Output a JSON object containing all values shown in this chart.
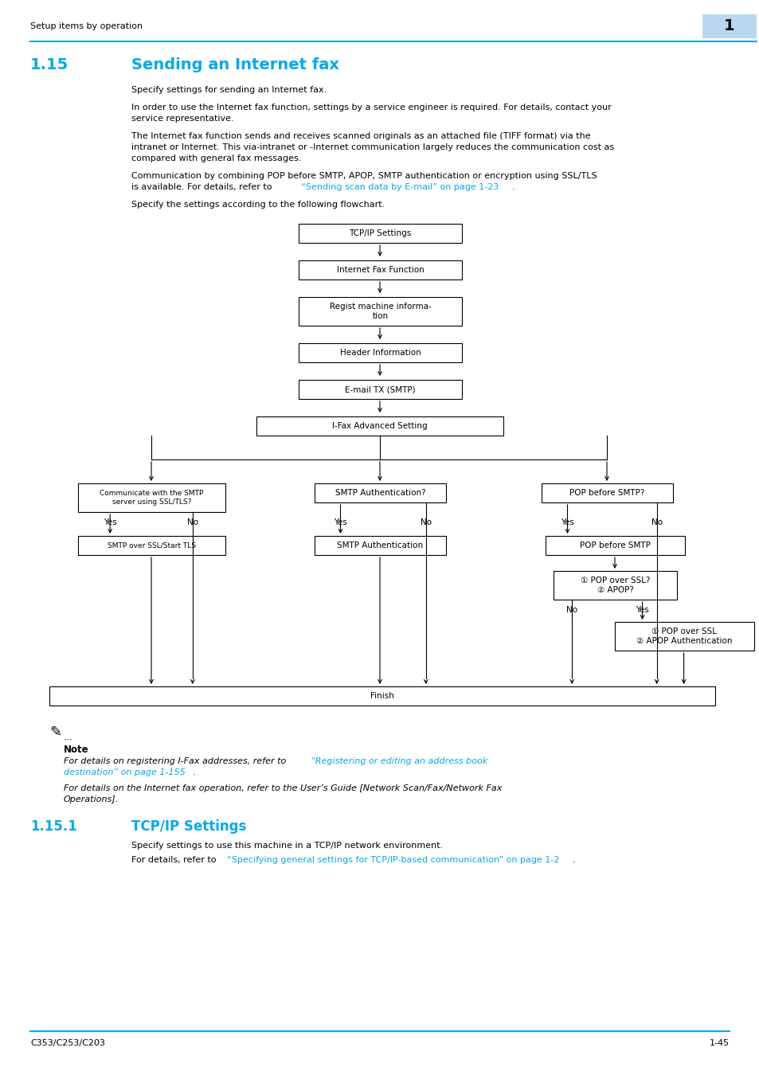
{
  "page_header_text": "Setup items by operation",
  "page_number_text": "1",
  "page_number_bg": "#b8d8f0",
  "header_line_color": "#00aaee",
  "section_number": "1.15",
  "section_title": "Sending an Internet fax",
  "section_title_color": "#00aaee",
  "subsection_number": "1.15.1",
  "subsection_title": "TCP/IP Settings",
  "subsection_title_color": "#00aaee",
  "link_color": "#00aaee",
  "footer_left": "C353/C253/C203",
  "footer_right": "1-45",
  "footer_line_color": "#00aaee"
}
